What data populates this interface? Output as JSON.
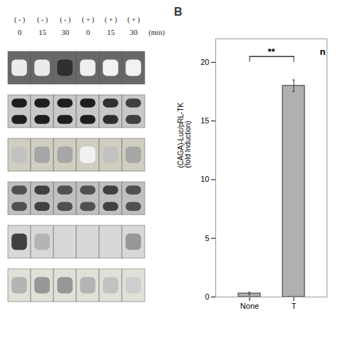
{
  "chart_data": [
    {
      "type": "blot",
      "groups": [
        "( - )",
        "( - )",
        "( - )",
        "( + )",
        "( + )",
        "( + )"
      ],
      "categories": [
        "0",
        "15",
        "30",
        "0",
        "15",
        "30"
      ],
      "unit_label": "(min)",
      "cells": [
        [
          0.15,
          0.15,
          0.85,
          0.12,
          0.1,
          0.1
        ],
        [
          0.9,
          0.9,
          0.9,
          0.9,
          0.85,
          0.8
        ],
        [
          0.35,
          0.45,
          0.45,
          0.1,
          0.35,
          0.45
        ],
        [
          0.75,
          0.8,
          0.75,
          0.75,
          0.8,
          0.75
        ],
        [
          0.8,
          0.4,
          0.25,
          0.25,
          0.25,
          0.5
        ],
        [
          0.4,
          0.5,
          0.5,
          0.4,
          0.35,
          0.3
        ]
      ],
      "colors": [
        "#686868",
        "#c8c8c8",
        "#d0cec0",
        "#c0c0c0",
        "#d8d8d8",
        "#e0e0d8"
      ],
      "bands": [
        1,
        2,
        1,
        2,
        1,
        1
      ]
    },
    {
      "type": "bar",
      "title": "B",
      "ylabel": "(CAGA)-Luc/pRL-TK\n(fold Induction)",
      "categories": [
        "None",
        "T"
      ],
      "values": [
        0.3,
        18.0
      ],
      "errors": [
        0.1,
        0.5
      ],
      "color": "#b0b0b0",
      "ylim": [
        0,
        22
      ],
      "yticks": [
        0,
        5,
        10,
        15,
        20
      ],
      "significance_y": 20.5,
      "significance_label": "**",
      "end_label": "n"
    }
  ]
}
